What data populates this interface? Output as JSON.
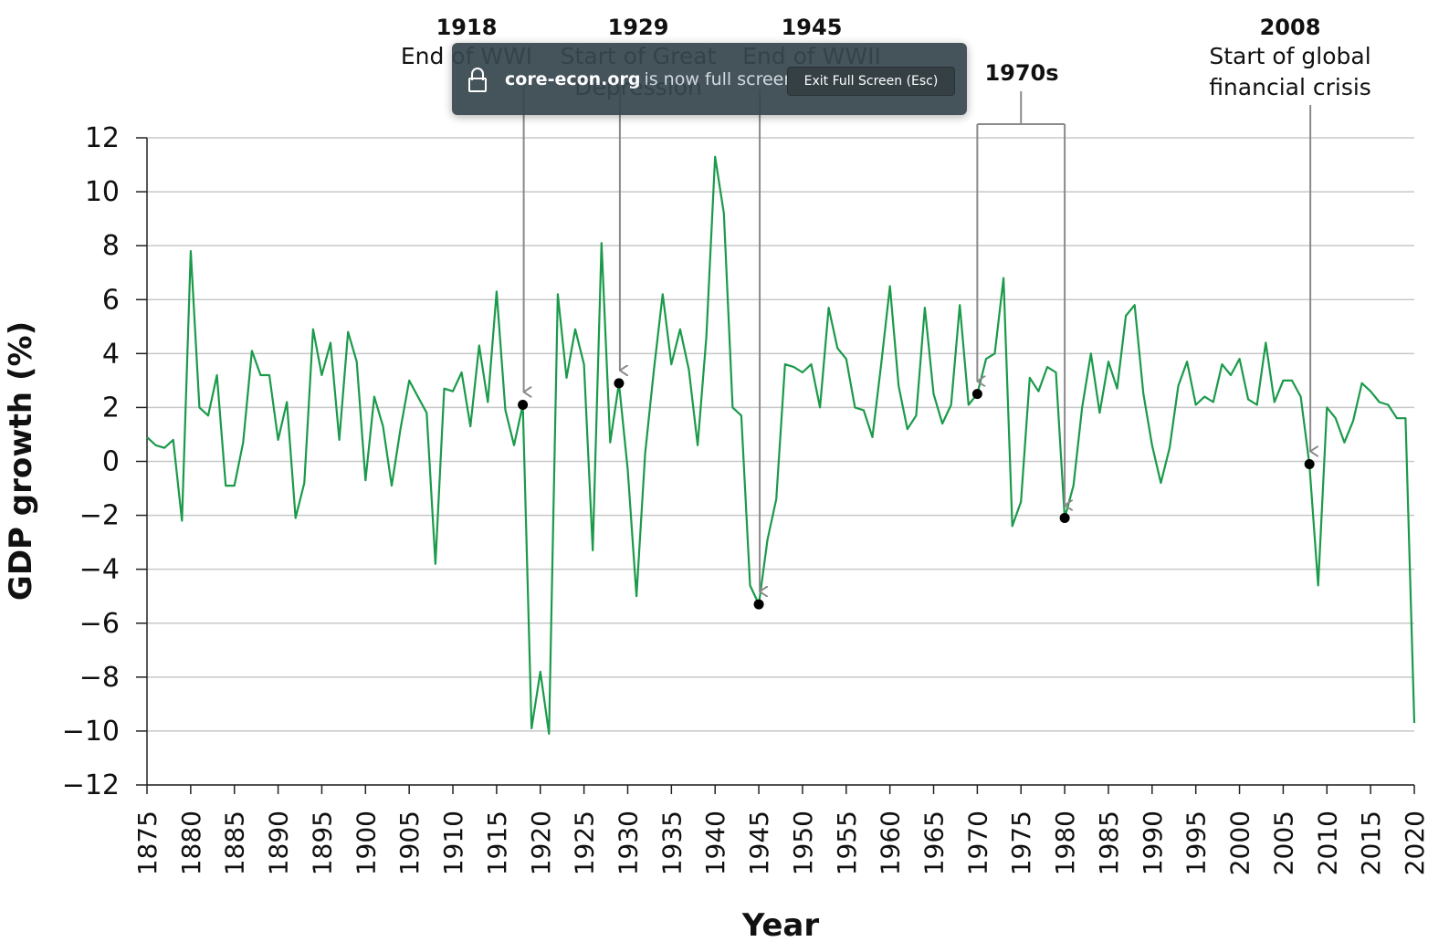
{
  "chart_data": {
    "type": "line",
    "xlabel": "Year",
    "ylabel": "GDP growth (%)",
    "xlim": [
      1875,
      2020
    ],
    "ylim": [
      -12,
      12
    ],
    "y_ticks": [
      12,
      10,
      8,
      6,
      4,
      2,
      0,
      -2,
      -4,
      -6,
      -8,
      -10,
      -12
    ],
    "y_tick_labels": [
      "12",
      "10",
      "8",
      "6",
      "4",
      "2",
      "0",
      "−2",
      "−4",
      "−6",
      "−8",
      "−10",
      "−12"
    ],
    "x_ticks": [
      1875,
      1880,
      1885,
      1890,
      1895,
      1900,
      1905,
      1910,
      1915,
      1920,
      1925,
      1930,
      1935,
      1940,
      1945,
      1950,
      1955,
      1960,
      1965,
      1970,
      1975,
      1980,
      1985,
      1990,
      1995,
      2000,
      2005,
      2010,
      2015,
      2020
    ],
    "grid": "horizontal",
    "line_color": "#1a9a4a",
    "series": [
      {
        "x": [
          1875,
          1876,
          1877,
          1878,
          1879,
          1880,
          1881,
          1882,
          1883,
          1884,
          1885,
          1886,
          1887,
          1888,
          1889,
          1890,
          1891,
          1892,
          1893,
          1894,
          1895,
          1896,
          1897,
          1898,
          1899,
          1900,
          1901,
          1902,
          1903,
          1904,
          1905,
          1906,
          1907,
          1908,
          1909,
          1910,
          1911,
          1912,
          1913,
          1914,
          1915,
          1916,
          1917,
          1918,
          1919,
          1920,
          1921,
          1922,
          1923,
          1924,
          1925,
          1926,
          1927,
          1928,
          1929,
          1930,
          1931,
          1932,
          1933,
          1934,
          1935,
          1936,
          1937,
          1938,
          1939,
          1940,
          1941,
          1942,
          1943,
          1944,
          1945,
          1946,
          1947,
          1948,
          1949,
          1950,
          1951,
          1952,
          1953,
          1954,
          1955,
          1956,
          1957,
          1958,
          1959,
          1960,
          1961,
          1962,
          1963,
          1964,
          1965,
          1966,
          1967,
          1968,
          1969,
          1970,
          1971,
          1972,
          1973,
          1974,
          1975,
          1976,
          1977,
          1978,
          1979,
          1980,
          1981,
          1982,
          1983,
          1984,
          1985,
          1986,
          1987,
          1988,
          1989,
          1990,
          1991,
          1992,
          1993,
          1994,
          1995,
          1996,
          1997,
          1998,
          1999,
          2000,
          2001,
          2002,
          2003,
          2004,
          2005,
          2006,
          2007,
          2008,
          2009,
          2010,
          2011,
          2012,
          2013,
          2014,
          2015,
          2016,
          2017,
          2018,
          2019,
          2020
        ],
        "values": [
          0.9,
          0.6,
          0.5,
          0.8,
          -2.2,
          7.8,
          2.0,
          1.7,
          3.2,
          -0.9,
          -0.9,
          0.7,
          4.1,
          3.2,
          3.2,
          0.8,
          2.2,
          -2.1,
          -0.8,
          4.9,
          3.2,
          4.4,
          0.8,
          4.8,
          3.7,
          -0.7,
          2.4,
          1.3,
          -0.9,
          1.2,
          3.0,
          2.4,
          1.8,
          -3.8,
          2.7,
          2.6,
          3.3,
          1.3,
          4.3,
          2.2,
          6.3,
          1.9,
          0.6,
          2.1,
          -9.9,
          -7.8,
          -10.1,
          6.2,
          3.1,
          4.9,
          3.6,
          -3.3,
          8.1,
          0.7,
          2.9,
          -0.3,
          -5.0,
          0.3,
          3.4,
          6.2,
          3.6,
          4.9,
          3.4,
          0.6,
          4.6,
          11.3,
          9.2,
          2.0,
          1.7,
          -4.6,
          -5.3,
          -2.9,
          -1.4,
          3.6,
          3.5,
          3.3,
          3.6,
          2.0,
          5.7,
          4.2,
          3.8,
          2.0,
          1.9,
          0.9,
          3.6,
          6.5,
          2.8,
          1.2,
          1.7,
          5.7,
          2.5,
          1.4,
          2.1,
          5.8,
          2.1,
          2.5,
          3.8,
          4.0,
          6.8,
          -2.4,
          -1.5,
          3.1,
          2.6,
          3.5,
          3.3,
          -2.1,
          -0.9,
          2.0,
          4.0,
          1.8,
          3.7,
          2.7,
          5.4,
          5.8,
          2.5,
          0.6,
          -0.8,
          0.5,
          2.8,
          3.7,
          2.1,
          2.4,
          2.2,
          3.6,
          3.2,
          3.8,
          2.3,
          2.1,
          4.4,
          2.2,
          3.0,
          3.0,
          2.4,
          -0.1,
          -4.6,
          2.0,
          1.6,
          0.7,
          1.5,
          2.9,
          2.6,
          2.2,
          2.1,
          1.6,
          1.6,
          -9.7
        ]
      }
    ],
    "highlight_points": [
      {
        "year": 1918,
        "value": 2.1
      },
      {
        "year": 1929,
        "value": 2.9
      },
      {
        "year": 1945,
        "value": -5.3
      },
      {
        "year": 1970,
        "value": 2.5
      },
      {
        "year": 1980,
        "value": -2.1
      },
      {
        "year": 2008,
        "value": -0.1
      }
    ],
    "annotations": [
      {
        "id": "1918",
        "year_label": "1918",
        "lines": [
          "End of WWI"
        ]
      },
      {
        "id": "1929",
        "year_label": "1929",
        "lines": [
          "Start of Great",
          "Depression"
        ]
      },
      {
        "id": "1945",
        "year_label": "1945",
        "lines": [
          "End of WWII"
        ]
      },
      {
        "id": "1970s",
        "year_label": "1970s",
        "lines": []
      },
      {
        "id": "2008",
        "year_label": "2008",
        "lines": [
          "Start of global",
          "financial crisis"
        ]
      }
    ]
  },
  "fullscreen_notice": {
    "domain": "core-econ.org",
    "message": "is now full screen",
    "exit_button": "Exit Full Screen (Esc)"
  }
}
